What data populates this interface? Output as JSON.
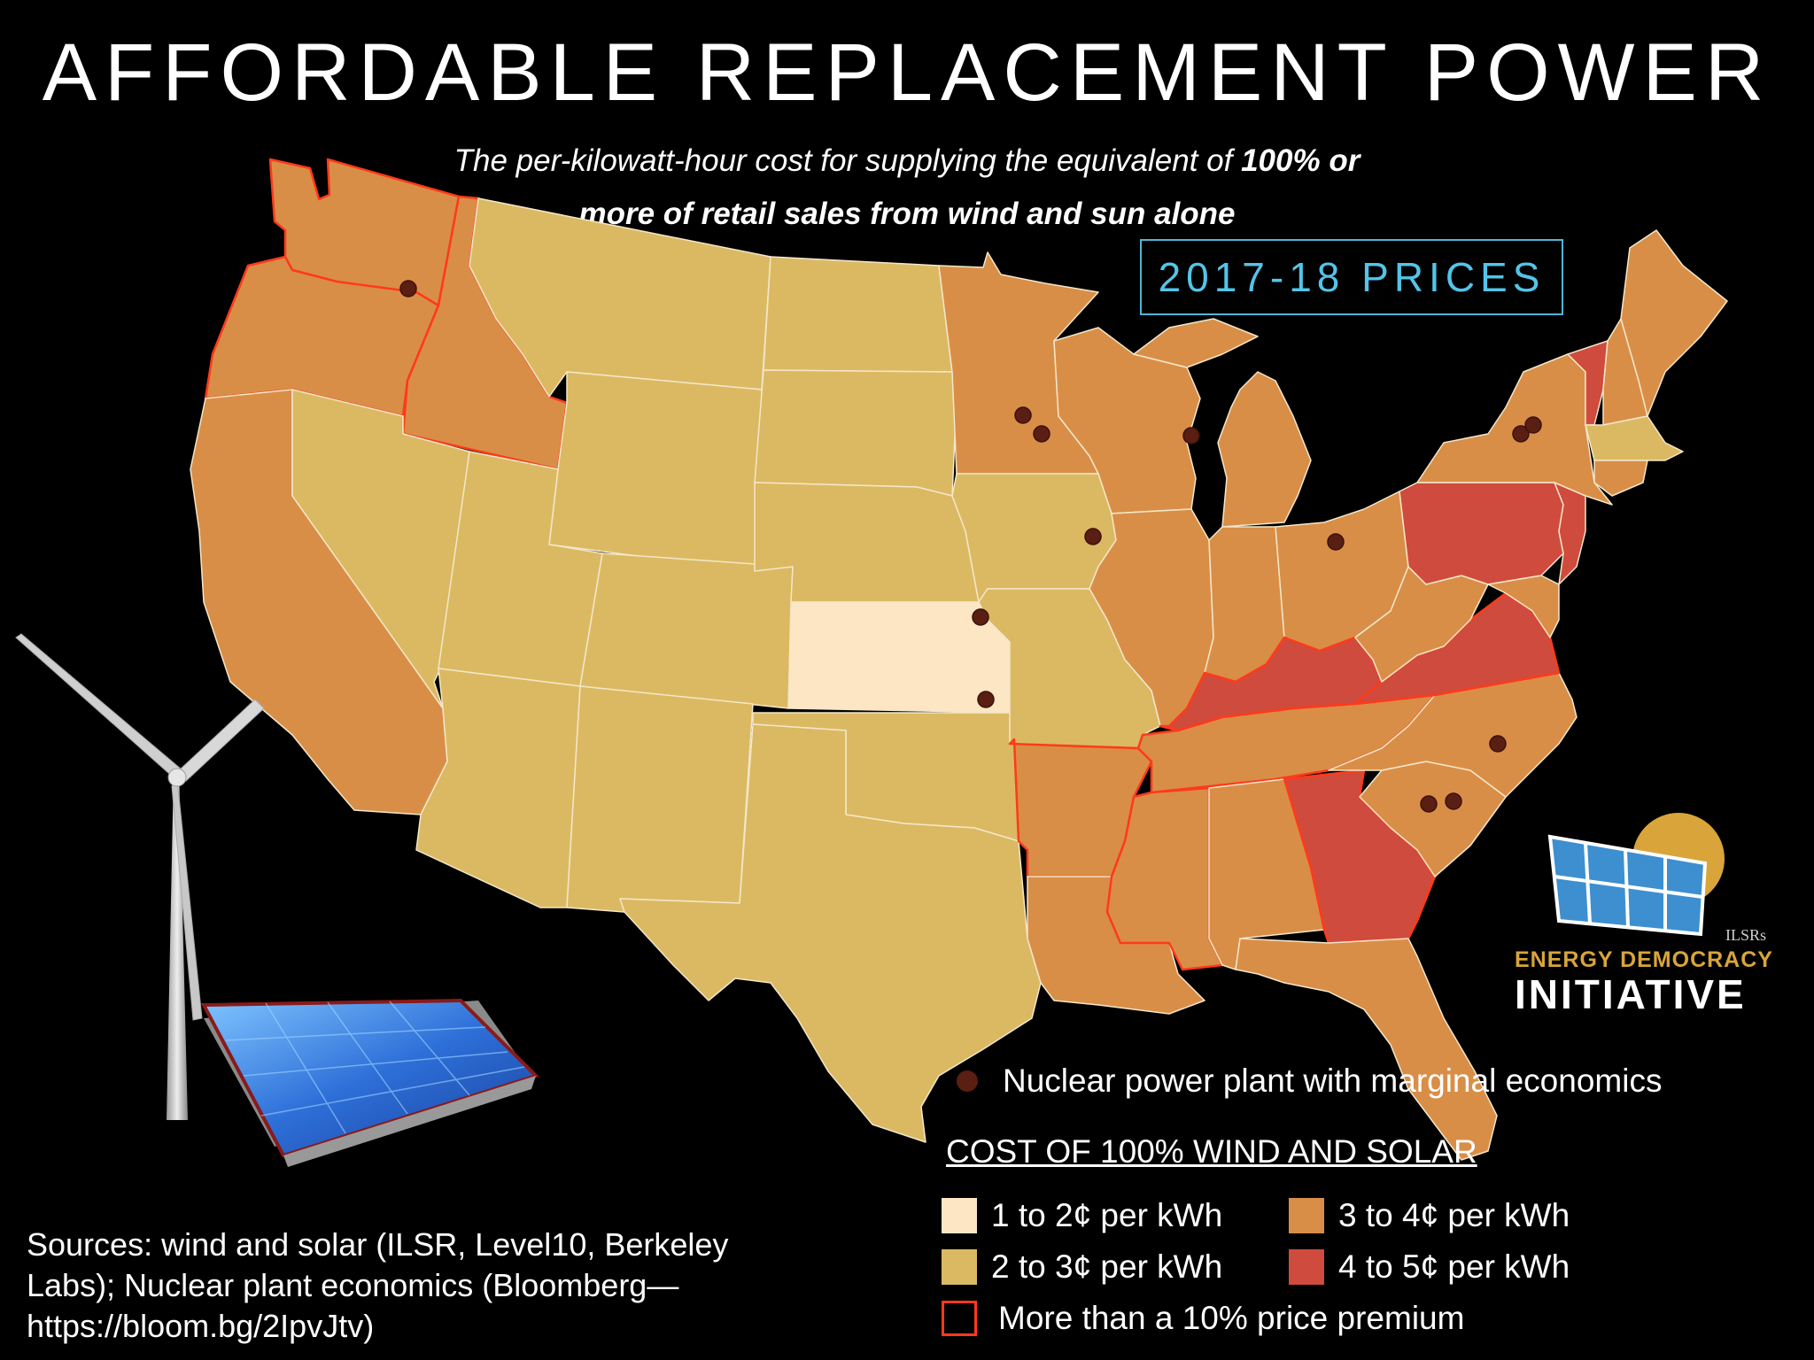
{
  "title": "AFFORDABLE REPLACEMENT POWER",
  "subtitle": {
    "line1_plain": "The per-kilowatt-hour cost for supplying the equivalent of ",
    "line1_bold": "100% or",
    "line2_bold": "more of retail sales from wind and sun alone"
  },
  "badge": "2017-18 PRICES",
  "legend": {
    "nuclear": "Nuclear power plant with marginal economics",
    "cost_title": "COST OF 100% WIND AND SOLAR",
    "items": [
      {
        "label": "1 to 2¢ per kWh",
        "color": "#fde6c4"
      },
      {
        "label": "2 to 3¢ per kWh",
        "color": "#dbb963"
      },
      {
        "label": "3 to 4¢ per kWh",
        "color": "#d98e48"
      },
      {
        "label": "4 to 5¢ per kWh",
        "color": "#cf4b3e"
      }
    ],
    "premium": "More than a 10% price premium",
    "premium_color": "#ff3a1a"
  },
  "sources": {
    "line1": "Sources: wind and solar (ILSR, Level10, Berkeley",
    "line2": "Labs); Nuclear plant economics (Bloomberg—",
    "line3": "https://bloom.bg/2IpvJtv)"
  },
  "logo": {
    "org": "ILSRs",
    "line1": "ENERGY DEMOCRACY",
    "line2": "INITIATIVE"
  },
  "icons": [
    "wind-turbine-icon",
    "solar-panel-icon",
    "solar-logo-icon"
  ]
}
